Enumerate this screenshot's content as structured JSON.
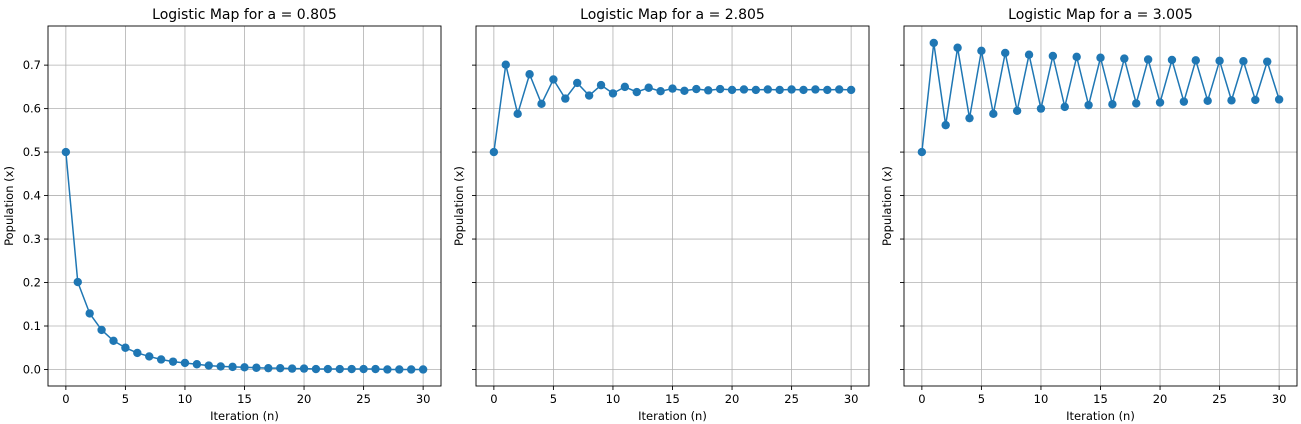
{
  "chart_data": [
    {
      "type": "line",
      "title": "Logistic Map for a = 0.805",
      "xlabel": "Iteration (n)",
      "ylabel": "Population (x)",
      "xlim": [
        -1.5,
        31.5
      ],
      "ylim": [
        -0.038,
        0.79
      ],
      "xticks": [
        0,
        5,
        10,
        15,
        20,
        25,
        30
      ],
      "xtick_labels": [
        "0",
        "5",
        "10",
        "15",
        "20",
        "25",
        "30"
      ],
      "yticks": [
        0.0,
        0.1,
        0.2,
        0.3,
        0.4,
        0.5,
        0.6,
        0.7
      ],
      "ytick_labels": [
        "0.0",
        "0.1",
        "0.2",
        "0.3",
        "0.4",
        "0.5",
        "0.6",
        "0.7"
      ],
      "show_yticklabels": true,
      "grid": true,
      "color": "#1f77b4",
      "series": [
        {
          "x": [
            0,
            1,
            2,
            3,
            4,
            5,
            6,
            7,
            8,
            9,
            10,
            11,
            12,
            13,
            14,
            15,
            16,
            17,
            18,
            19,
            20,
            21,
            22,
            23,
            24,
            25,
            26,
            27,
            28,
            29,
            30
          ],
          "y": [
            0.5,
            0.201,
            0.129,
            0.091,
            0.066,
            0.05,
            0.038,
            0.03,
            0.023,
            0.018,
            0.015,
            0.012,
            0.009,
            0.007,
            0.006,
            0.005,
            0.004,
            0.003,
            0.003,
            0.002,
            0.002,
            0.001,
            0.001,
            0.001,
            0.001,
            0.001,
            0.001,
            0.0,
            0.0,
            0.0,
            0.0
          ]
        }
      ]
    },
    {
      "type": "line",
      "title": "Logistic Map for a = 2.805",
      "xlabel": "Iteration (n)",
      "ylabel": "Population (x)",
      "xlim": [
        -1.5,
        31.5
      ],
      "ylim": [
        -0.038,
        0.79
      ],
      "xticks": [
        0,
        5,
        10,
        15,
        20,
        25,
        30
      ],
      "xtick_labels": [
        "0",
        "5",
        "10",
        "15",
        "20",
        "25",
        "30"
      ],
      "yticks": [
        0.0,
        0.1,
        0.2,
        0.3,
        0.4,
        0.5,
        0.6,
        0.7
      ],
      "ytick_labels": [
        "0.0",
        "0.1",
        "0.2",
        "0.3",
        "0.4",
        "0.5",
        "0.6",
        "0.7"
      ],
      "show_yticklabels": false,
      "grid": true,
      "color": "#1f77b4",
      "series": [
        {
          "x": [
            0,
            1,
            2,
            3,
            4,
            5,
            6,
            7,
            8,
            9,
            10,
            11,
            12,
            13,
            14,
            15,
            16,
            17,
            18,
            19,
            20,
            21,
            22,
            23,
            24,
            25,
            26,
            27,
            28,
            29,
            30
          ],
          "y": [
            0.5,
            0.701,
            0.588,
            0.679,
            0.611,
            0.667,
            0.623,
            0.659,
            0.63,
            0.654,
            0.635,
            0.65,
            0.638,
            0.648,
            0.64,
            0.646,
            0.641,
            0.645,
            0.642,
            0.645,
            0.643,
            0.644,
            0.643,
            0.644,
            0.643,
            0.644,
            0.643,
            0.644,
            0.643,
            0.644,
            0.643
          ]
        }
      ]
    },
    {
      "type": "line",
      "title": "Logistic Map for a = 3.005",
      "xlabel": "Iteration (n)",
      "ylabel": "Population (x)",
      "xlim": [
        -1.5,
        31.5
      ],
      "ylim": [
        -0.038,
        0.79
      ],
      "xticks": [
        0,
        5,
        10,
        15,
        20,
        25,
        30
      ],
      "xtick_labels": [
        "0",
        "5",
        "10",
        "15",
        "20",
        "25",
        "30"
      ],
      "yticks": [
        0.0,
        0.1,
        0.2,
        0.3,
        0.4,
        0.5,
        0.6,
        0.7
      ],
      "ytick_labels": [
        "0.0",
        "0.1",
        "0.2",
        "0.3",
        "0.4",
        "0.5",
        "0.6",
        "0.7"
      ],
      "show_yticklabels": false,
      "grid": true,
      "color": "#1f77b4",
      "series": [
        {
          "x": [
            0,
            1,
            2,
            3,
            4,
            5,
            6,
            7,
            8,
            9,
            10,
            11,
            12,
            13,
            14,
            15,
            16,
            17,
            18,
            19,
            20,
            21,
            22,
            23,
            24,
            25,
            26,
            27,
            28,
            29,
            30
          ],
          "y": [
            0.5,
            0.751,
            0.562,
            0.74,
            0.578,
            0.733,
            0.588,
            0.728,
            0.595,
            0.724,
            0.6,
            0.721,
            0.604,
            0.719,
            0.608,
            0.717,
            0.61,
            0.715,
            0.612,
            0.713,
            0.614,
            0.712,
            0.616,
            0.711,
            0.618,
            0.71,
            0.619,
            0.709,
            0.62,
            0.708,
            0.621
          ]
        }
      ]
    }
  ]
}
